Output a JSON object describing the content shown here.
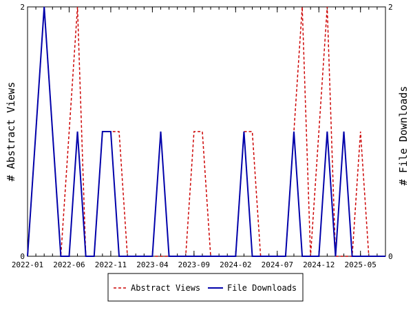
{
  "chart_data": {
    "type": "line",
    "title": "",
    "xlabel": "",
    "ylabel_left": "# Abstract Views",
    "ylabel_right": "# File Downloads",
    "x_start": "2022-01",
    "x_end": "2025-08",
    "x_ticks": [
      "2022-01",
      "2022-06",
      "2022-11",
      "2023-04",
      "2023-09",
      "2024-02",
      "2024-07",
      "2024-12",
      "2025-05"
    ],
    "ylim_left": [
      0,
      2
    ],
    "ylim_right": [
      0,
      2
    ],
    "y_ticks_left": [
      "0",
      "2"
    ],
    "y_ticks_right": [
      "0",
      "2"
    ],
    "grid": false,
    "legend_position": "bottom-center",
    "series": [
      {
        "name": "Abstract Views",
        "color": "#cc0000",
        "style": "dashed",
        "axis": "left",
        "points": [
          [
            "2022-01",
            0
          ],
          [
            "2022-02",
            1
          ],
          [
            "2022-03",
            2
          ],
          [
            "2022-04",
            1
          ],
          [
            "2022-05",
            0
          ],
          [
            "2022-06",
            1
          ],
          [
            "2022-07",
            2
          ],
          [
            "2022-08",
            0
          ],
          [
            "2022-09",
            0
          ],
          [
            "2022-10",
            1
          ],
          [
            "2022-11",
            1
          ],
          [
            "2022-12",
            1
          ],
          [
            "2023-01",
            0
          ],
          [
            "2023-02",
            0
          ],
          [
            "2023-03",
            0
          ],
          [
            "2023-04",
            0
          ],
          [
            "2023-05",
            0
          ],
          [
            "2023-06",
            0
          ],
          [
            "2023-07",
            0
          ],
          [
            "2023-08",
            0
          ],
          [
            "2023-09",
            1
          ],
          [
            "2023-10",
            1
          ],
          [
            "2023-11",
            0
          ],
          [
            "2023-12",
            0
          ],
          [
            "2024-01",
            0
          ],
          [
            "2024-02",
            0
          ],
          [
            "2024-03",
            1
          ],
          [
            "2024-04",
            1
          ],
          [
            "2024-05",
            0
          ],
          [
            "2024-06",
            0
          ],
          [
            "2024-07",
            0
          ],
          [
            "2024-08",
            0
          ],
          [
            "2024-09",
            1
          ],
          [
            "2024-10",
            2
          ],
          [
            "2024-11",
            0
          ],
          [
            "2024-12",
            1
          ],
          [
            "2025-01",
            2
          ],
          [
            "2025-02",
            0
          ],
          [
            "2025-03",
            0
          ],
          [
            "2025-04",
            0
          ],
          [
            "2025-05",
            1
          ],
          [
            "2025-06",
            0
          ],
          [
            "2025-07",
            0
          ],
          [
            "2025-08",
            0
          ]
        ]
      },
      {
        "name": "File Downloads",
        "color": "#0000aa",
        "style": "solid",
        "axis": "right",
        "points": [
          [
            "2022-01",
            0
          ],
          [
            "2022-02",
            1
          ],
          [
            "2022-03",
            2
          ],
          [
            "2022-04",
            1
          ],
          [
            "2022-05",
            0
          ],
          [
            "2022-06",
            0
          ],
          [
            "2022-07",
            1
          ],
          [
            "2022-08",
            0
          ],
          [
            "2022-09",
            0
          ],
          [
            "2022-10",
            1
          ],
          [
            "2022-11",
            1
          ],
          [
            "2022-12",
            0
          ],
          [
            "2023-01",
            0
          ],
          [
            "2023-02",
            0
          ],
          [
            "2023-03",
            0
          ],
          [
            "2023-04",
            0
          ],
          [
            "2023-05",
            1
          ],
          [
            "2023-06",
            0
          ],
          [
            "2023-07",
            0
          ],
          [
            "2023-08",
            0
          ],
          [
            "2023-09",
            0
          ],
          [
            "2023-10",
            0
          ],
          [
            "2023-11",
            0
          ],
          [
            "2023-12",
            0
          ],
          [
            "2024-01",
            0
          ],
          [
            "2024-02",
            0
          ],
          [
            "2024-03",
            1
          ],
          [
            "2024-04",
            0
          ],
          [
            "2024-05",
            0
          ],
          [
            "2024-06",
            0
          ],
          [
            "2024-07",
            0
          ],
          [
            "2024-08",
            0
          ],
          [
            "2024-09",
            1
          ],
          [
            "2024-10",
            0
          ],
          [
            "2024-11",
            0
          ],
          [
            "2024-12",
            0
          ],
          [
            "2025-01",
            1
          ],
          [
            "2025-02",
            0
          ],
          [
            "2025-03",
            1
          ],
          [
            "2025-04",
            0
          ],
          [
            "2025-05",
            0
          ],
          [
            "2025-06",
            0
          ],
          [
            "2025-07",
            0
          ],
          [
            "2025-08",
            0
          ]
        ]
      }
    ]
  }
}
